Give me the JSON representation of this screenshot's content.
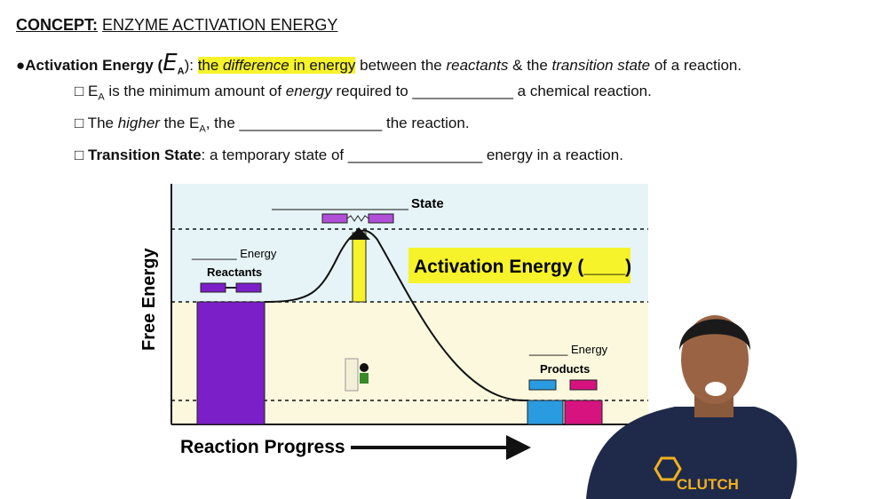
{
  "header": {
    "label": "CONCEPT:",
    "title": "ENZYME ACTIVATION ENERGY"
  },
  "definition": [
    "●Activation Energy (",
    "E",
    "A",
    "): ",
    "the ",
    "difference",
    " in energy",
    " between the ",
    "reactants",
    " & the ",
    "transition state",
    " of a reaction."
  ],
  "points": [
    [
      "□ E",
      "A",
      " is the minimum amount of ",
      "energy",
      " required to ____________ a chemical reaction."
    ],
    [
      "□ The ",
      "higher",
      " the E",
      "A",
      ", the _________________ the reaction."
    ],
    [
      "□ ",
      "Transition State",
      ": a temporary state of ________________ energy in a reaction."
    ]
  ],
  "diagram": {
    "state_label": "State",
    "reactant_energy": "_______ Energy",
    "reactants": "Reactants",
    "activation_energy": "Activation Energy (____)",
    "y_axis": "Free Energy",
    "product_energy": "______ Energy",
    "products": "Products",
    "x_axis": "Reaction Progress"
  },
  "logo": "CLUTCH"
}
